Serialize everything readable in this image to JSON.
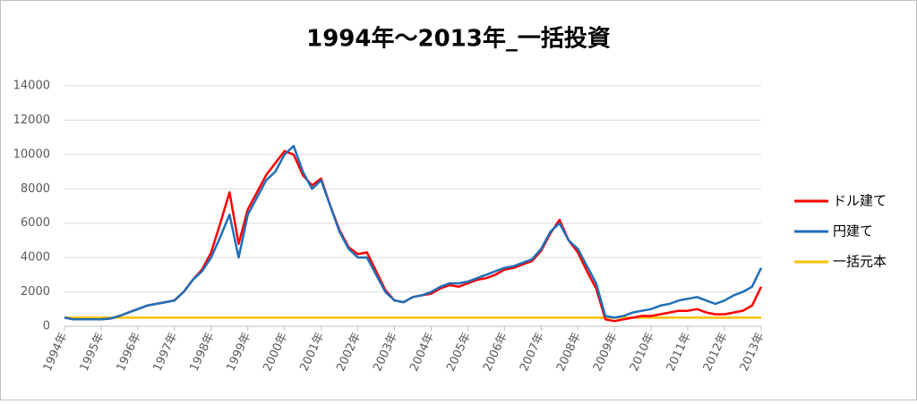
{
  "chart_data": {
    "type": "line",
    "title": "1994年～2013年_一括投資",
    "categories": [
      "1994年",
      null,
      null,
      null,
      "1995年",
      null,
      null,
      null,
      "1996年",
      null,
      null,
      null,
      "1997年",
      null,
      null,
      null,
      "1998年",
      null,
      null,
      null,
      "1999年",
      null,
      null,
      null,
      "2000年",
      null,
      null,
      null,
      "2001年",
      null,
      null,
      null,
      "2002年",
      null,
      null,
      null,
      "2003年",
      null,
      null,
      null,
      "2004年",
      null,
      null,
      null,
      "2005年",
      null,
      null,
      null,
      "2006年",
      null,
      null,
      null,
      "2007年",
      null,
      null,
      null,
      "2008年",
      null,
      null,
      null,
      "2009年",
      null,
      null,
      null,
      "2010年",
      null,
      null,
      null,
      "2011年",
      null,
      null,
      null,
      "2012年",
      null,
      null,
      null,
      "2013年"
    ],
    "series": [
      {
        "name": "ドル建て",
        "color": "#ff0000",
        "values": [
          500,
          400,
          400,
          400,
          400,
          450,
          600,
          800,
          1000,
          1200,
          1300,
          1400,
          1500,
          2000,
          2700,
          3300,
          4300,
          6000,
          7800,
          4800,
          6800,
          7800,
          8800,
          9500,
          10200,
          10000,
          8800,
          8200,
          8600,
          7000,
          5600,
          4600,
          4200,
          4300,
          3200,
          2100,
          1500,
          1400,
          1700,
          1800,
          1900,
          2200,
          2400,
          2300,
          2500,
          2700,
          2800,
          3000,
          3300,
          3400,
          3600,
          3800,
          4400,
          5400,
          6200,
          5000,
          4300,
          3200,
          2200,
          400,
          300,
          400,
          500,
          600,
          600,
          700,
          800,
          900,
          900,
          1000,
          800,
          700,
          700,
          800,
          900,
          1200,
          2300
        ]
      },
      {
        "name": "円建て",
        "color": "#1f6fb8",
        "values": [
          500,
          400,
          400,
          400,
          400,
          450,
          600,
          800,
          1000,
          1200,
          1300,
          1400,
          1500,
          2000,
          2700,
          3200,
          4000,
          5200,
          6500,
          4000,
          6500,
          7500,
          8500,
          9000,
          10000,
          10500,
          9000,
          8000,
          8500,
          7000,
          5500,
          4500,
          4000,
          4000,
          3000,
          2000,
          1500,
          1400,
          1700,
          1800,
          2000,
          2300,
          2500,
          2500,
          2600,
          2800,
          3000,
          3200,
          3400,
          3500,
          3700,
          3900,
          4500,
          5500,
          6000,
          5000,
          4500,
          3500,
          2500,
          600,
          500,
          600,
          800,
          900,
          1000,
          1200,
          1300,
          1500,
          1600,
          1700,
          1500,
          1300,
          1500,
          1800,
          2000,
          2300,
          3400
        ]
      },
      {
        "name": "一括元本",
        "color": "#ffc000",
        "values": [
          500,
          500,
          500,
          500,
          500,
          500,
          500,
          500,
          500,
          500,
          500,
          500,
          500,
          500,
          500,
          500,
          500,
          500,
          500,
          500,
          500,
          500,
          500,
          500,
          500,
          500,
          500,
          500,
          500,
          500,
          500,
          500,
          500,
          500,
          500,
          500,
          500,
          500,
          500,
          500,
          500,
          500,
          500,
          500,
          500,
          500,
          500,
          500,
          500,
          500,
          500,
          500,
          500,
          500,
          500,
          500,
          500,
          500,
          500,
          500,
          500,
          500,
          500,
          500,
          500,
          500,
          500,
          500,
          500,
          500,
          500,
          500,
          500,
          500,
          500,
          500,
          500
        ]
      }
    ],
    "ylim": [
      0,
      14000
    ],
    "yticks": [
      0,
      2000,
      4000,
      6000,
      8000,
      10000,
      12000,
      14000
    ],
    "grid": true,
    "legend": "right"
  }
}
